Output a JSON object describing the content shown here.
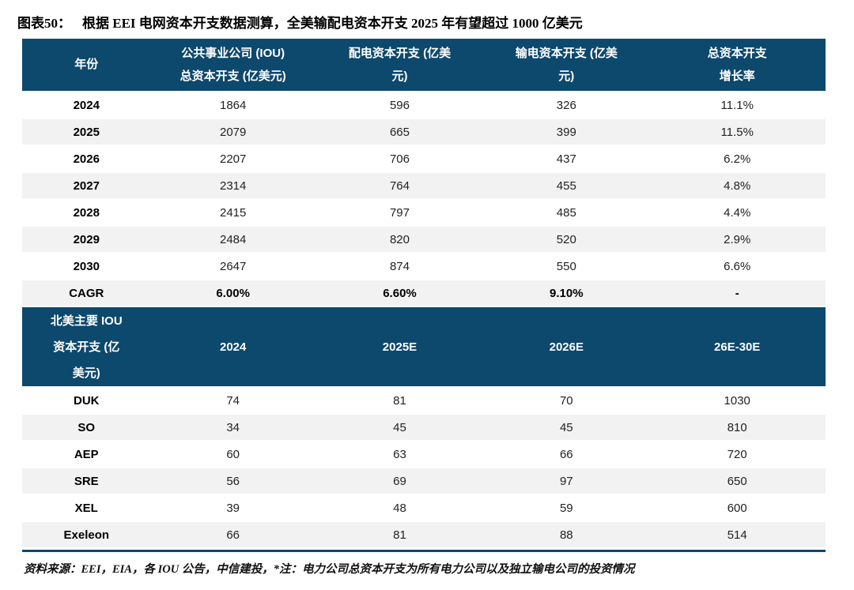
{
  "figure": {
    "label": "图表50：",
    "title": "根据 EEI 电网资本开支数据测算，全美输配电资本开支 2025 年有望超过 1000 亿美元"
  },
  "national_table": {
    "headers": [
      "年份",
      "公共事业公司 (IOU)\n总资本开支 (亿美元)",
      "配电资本开支 (亿美\n元)",
      "输电资本开支 (亿美\n元)",
      "总资本开支\n增长率"
    ],
    "rows": [
      [
        "2024",
        "1864",
        "596",
        "326",
        "11.1%"
      ],
      [
        "2025",
        "2079",
        "665",
        "399",
        "11.5%"
      ],
      [
        "2026",
        "2207",
        "706",
        "437",
        "6.2%"
      ],
      [
        "2027",
        "2314",
        "764",
        "455",
        "4.8%"
      ],
      [
        "2028",
        "2415",
        "797",
        "485",
        "4.4%"
      ],
      [
        "2029",
        "2484",
        "820",
        "520",
        "2.9%"
      ],
      [
        "2030",
        "2647",
        "874",
        "550",
        "6.6%"
      ],
      [
        "CAGR",
        "6.00%",
        "6.60%",
        "9.10%",
        "-"
      ]
    ],
    "bold_row_labels": [
      "CAGR"
    ]
  },
  "iou_table": {
    "headers": [
      "北美主要 IOU\n资本开支 (亿\n美元)",
      "2024",
      "2025E",
      "2026E",
      "26E-30E"
    ],
    "rows": [
      [
        "DUK",
        "74",
        "81",
        "70",
        "1030"
      ],
      [
        "SO",
        "34",
        "45",
        "45",
        "810"
      ],
      [
        "AEP",
        "60",
        "63",
        "66",
        "720"
      ],
      [
        "SRE",
        "56",
        "69",
        "97",
        "650"
      ],
      [
        "XEL",
        "39",
        "48",
        "59",
        "600"
      ],
      [
        "Exeleon",
        "66",
        "81",
        "88",
        "514"
      ]
    ],
    "bold_row_labels": []
  },
  "source_note": "资料来源：EEI，EIA，各 IOU 公告，中信建投，*注：电力公司总资本开支为所有电力公司以及独立输电公司的投资情况",
  "colors": {
    "header_bg": "#0D486D",
    "row_alt_bg": "#F2F2F2",
    "bottom_rule": "#0D486D",
    "header_text": "#FFFFFF",
    "body_text": "#222222"
  }
}
